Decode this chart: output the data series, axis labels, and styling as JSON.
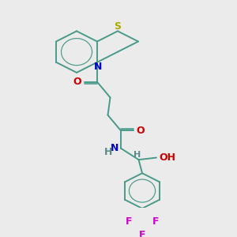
{
  "background_color": "#ebebeb",
  "bond_color": "#4a9a8a",
  "S_color": "#aaaa00",
  "N_color": "#0000cc",
  "O_color": "#cc0000",
  "F_color": "#cc00cc",
  "H_color": "#5a8a8a",
  "figsize": [
    3.0,
    3.0
  ],
  "dpi": 100,
  "xlim": [
    0,
    10
  ],
  "ylim": [
    0,
    10
  ]
}
